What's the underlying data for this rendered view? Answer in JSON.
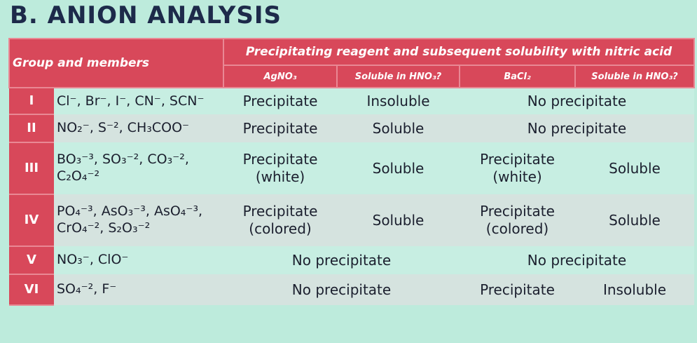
{
  "title": "B. ANION ANALYSIS",
  "table": {
    "header": {
      "group": "Group and members",
      "reagent": "Precipitating reagent and subsequent solubility with nitric acid",
      "columns": [
        "AgNO₃",
        "Soluble in HNO₃?",
        "BaCl₂",
        "Soluble in HNO₃?"
      ]
    },
    "rows": [
      {
        "group": "I",
        "members": "Cl⁻, Br⁻, I⁻, CN⁻, SCN⁻",
        "cells": [
          "Precipitate",
          "Insoluble",
          "No precipitate"
        ]
      },
      {
        "group": "II",
        "members": "NO₂⁻, S⁻², CH₃COO⁻",
        "cells": [
          "Precipitate",
          "Soluble",
          "No precipitate"
        ]
      },
      {
        "group": "III",
        "members": "BO₃⁻³, SO₃⁻², CO₃⁻²,\nC₂O₄⁻²",
        "cells": [
          "Precipitate\n(white)",
          "Soluble",
          "Precipitate\n(white)",
          "Soluble"
        ]
      },
      {
        "group": "IV",
        "members": "PO₄⁻³, AsO₃⁻³, AsO₄⁻³,\nCrO₄⁻², S₂O₃⁻²",
        "cells": [
          "Precipitate\n(colored)",
          "Soluble",
          "Precipitate\n(colored)",
          "Soluble"
        ]
      },
      {
        "group": "V",
        "members": "NO₃⁻, ClO⁻",
        "cells": [
          "No precipitate",
          "No precipitate"
        ]
      },
      {
        "group": "VI",
        "members": "SO₄⁻², F⁻",
        "cells": [
          "No precipitate",
          "Precipitate",
          "Insoluble"
        ]
      }
    ]
  }
}
